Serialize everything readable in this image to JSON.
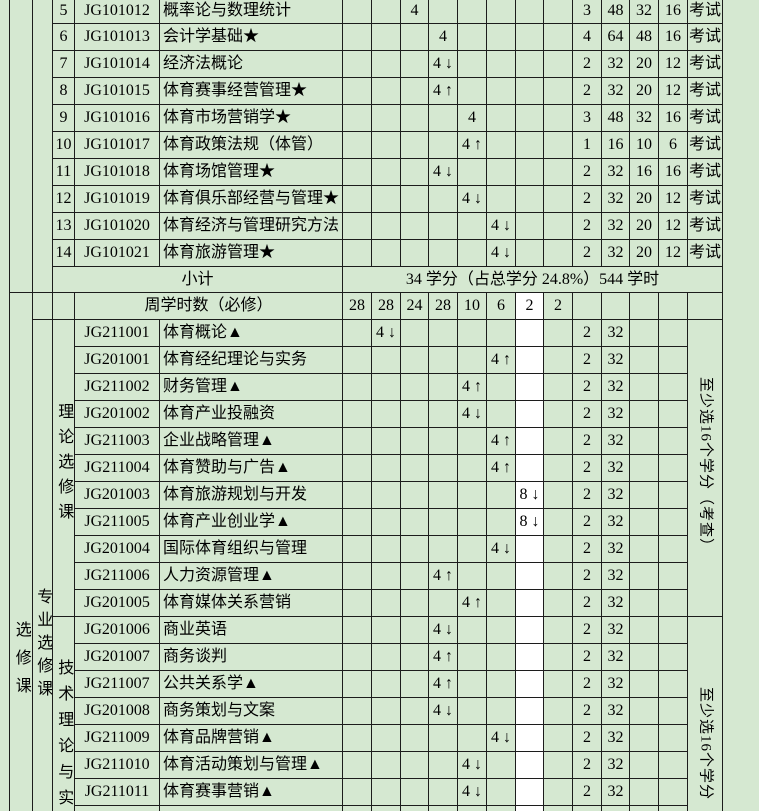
{
  "palette": {
    "cell_green": "#d5e8d1",
    "cell_white": "#ffffff",
    "grid_line": "#1c1c1c"
  },
  "top": {
    "rows": [
      {
        "num": "5",
        "code": "JG101012",
        "name": "概率论与数理统计",
        "sem": 3,
        "hours": "4",
        "credits": "3",
        "total": "48",
        "lecture": "32",
        "practice": "16",
        "exam": "考试"
      },
      {
        "num": "6",
        "code": "JG101013",
        "name": "会计学基础★",
        "sem": 4,
        "hours": "4",
        "credits": "4",
        "total": "64",
        "lecture": "48",
        "practice": "16",
        "exam": "考试"
      },
      {
        "num": "7",
        "code": "JG101014",
        "name": "经济法概论",
        "sem": 4,
        "hours": "4 ↓",
        "credits": "2",
        "total": "32",
        "lecture": "20",
        "practice": "12",
        "exam": "考试"
      },
      {
        "num": "8",
        "code": "JG101015",
        "name": "体育赛事经营管理★",
        "sem": 4,
        "hours": "4 ↑",
        "credits": "2",
        "total": "32",
        "lecture": "20",
        "practice": "12",
        "exam": "考试"
      },
      {
        "num": "9",
        "code": "JG101016",
        "name": "体育市场营销学★",
        "sem": 5,
        "hours": "4",
        "credits": "3",
        "total": "48",
        "lecture": "32",
        "practice": "16",
        "exam": "考试"
      },
      {
        "num": "10",
        "code": "JG101017",
        "name": "体育政策法规（体管）",
        "sem": 5,
        "hours": "4 ↑",
        "credits": "1",
        "total": "16",
        "lecture": "10",
        "practice": "6",
        "exam": "考试"
      },
      {
        "num": "11",
        "code": "JG101018",
        "name": "体育场馆管理★",
        "sem": 4,
        "hours": "4 ↓",
        "credits": "2",
        "total": "32",
        "lecture": "16",
        "practice": "16",
        "exam": "考试"
      },
      {
        "num": "12",
        "code": "JG101019",
        "name": "体育俱乐部经营与管理★",
        "sem": 5,
        "hours": "4 ↓",
        "credits": "2",
        "total": "32",
        "lecture": "20",
        "practice": "12",
        "exam": "考试"
      },
      {
        "num": "13",
        "code": "JG101020",
        "name": "体育经济与管理研究方法",
        "sem": 6,
        "hours": "4 ↓",
        "credits": "2",
        "total": "32",
        "lecture": "20",
        "practice": "12",
        "exam": "考试"
      },
      {
        "num": "14",
        "code": "JG101021",
        "name": "体育旅游管理★",
        "sem": 6,
        "hours": "4 ↓",
        "credits": "2",
        "total": "32",
        "lecture": "20",
        "practice": "12",
        "exam": "考试"
      }
    ],
    "subtotal": {
      "label": "小计",
      "value": "34 学分（占总学分 24.8%）544 学时"
    }
  },
  "weekly": {
    "label": "周学时数（必修）",
    "values": [
      "28",
      "28",
      "24",
      "28",
      "10",
      "6",
      "2",
      "2"
    ]
  },
  "elective": {
    "left_outer": "选修课",
    "left_mid": "专业选修课",
    "groups": [
      {
        "label": "理论选修课",
        "right_label": "至少选16个学分（考查）",
        "rows": [
          {
            "code": "JG211001",
            "name": "体育概论▲",
            "sem": 2,
            "hours": "4 ↓",
            "credits": "2",
            "total": "32"
          },
          {
            "code": "JG201001",
            "name": "体育经纪理论与实务",
            "sem": 6,
            "hours": "4 ↑",
            "credits": "2",
            "total": "32"
          },
          {
            "code": "JG211002",
            "name": "财务管理▲",
            "sem": 5,
            "hours": "4 ↑",
            "credits": "2",
            "total": "32"
          },
          {
            "code": "JG201002",
            "name": "体育产业投融资",
            "sem": 5,
            "hours": "4 ↓",
            "credits": "2",
            "total": "32"
          },
          {
            "code": "JG211003",
            "name": "企业战略管理▲",
            "sem": 6,
            "hours": "4 ↑",
            "credits": "2",
            "total": "32"
          },
          {
            "code": "JG211004",
            "name": "体育赞助与广告▲",
            "sem": 6,
            "hours": "4 ↑",
            "credits": "2",
            "total": "32"
          },
          {
            "code": "JG201003",
            "name": "体育旅游规划与开发",
            "sem": 7,
            "hours": "8 ↓",
            "credits": "2",
            "total": "32"
          },
          {
            "code": "JG211005",
            "name": "体育产业创业学▲",
            "sem": 7,
            "hours": "8 ↓",
            "credits": "2",
            "total": "32"
          },
          {
            "code": "JG201004",
            "name": "国际体育组织与管理",
            "sem": 6,
            "hours": "4 ↓",
            "credits": "2",
            "total": "32"
          },
          {
            "code": "JG211006",
            "name": "人力资源管理▲",
            "sem": 4,
            "hours": "4 ↑",
            "credits": "2",
            "total": "32"
          },
          {
            "code": "JG201005",
            "name": "体育媒体关系营销",
            "sem": 5,
            "hours": "4 ↑",
            "credits": "2",
            "total": "32"
          }
        ]
      },
      {
        "label": "技术理论与实",
        "right_label": "至少选16个学分",
        "rows": [
          {
            "code": "JG201006",
            "name": "商业英语",
            "sem": 4,
            "hours": "4 ↓",
            "credits": "2",
            "total": "32"
          },
          {
            "code": "JG201007",
            "name": "商务谈判",
            "sem": 4,
            "hours": "4 ↑",
            "credits": "2",
            "total": "32"
          },
          {
            "code": "JG211007",
            "name": "公共关系学▲",
            "sem": 4,
            "hours": "4 ↑",
            "credits": "2",
            "total": "32"
          },
          {
            "code": "JG201008",
            "name": "商务策划与文案",
            "sem": 4,
            "hours": "4 ↓",
            "credits": "2",
            "total": "32"
          },
          {
            "code": "JG211009",
            "name": "体育品牌营销▲",
            "sem": 6,
            "hours": "4 ↓",
            "credits": "2",
            "total": "32"
          },
          {
            "code": "JG211010",
            "name": "体育活动策划与管理▲",
            "sem": 5,
            "hours": "4 ↓",
            "credits": "2",
            "total": "32"
          },
          {
            "code": "JG211011",
            "name": "体育赛事营销▲",
            "sem": 5,
            "hours": "4 ↓",
            "credits": "2",
            "total": "32"
          }
        ]
      }
    ]
  }
}
